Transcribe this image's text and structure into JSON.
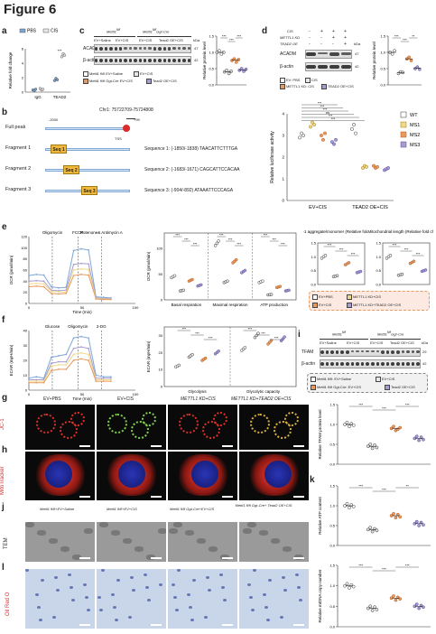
{
  "figure_title": "Figure 6",
  "colors": {
    "pbs": "#7fa7d6",
    "cis": "#e8e8e8",
    "wt": "#ffffff",
    "ms1": "#f0d98a",
    "ms2": "#e69a5f",
    "ms3": "#a89bd0",
    "tss": "#d92b2b",
    "seq": "#f3b93a",
    "jc1_bg": "#0a0a0a",
    "mito_red": "#d8322a",
    "mito_blue": "#2a35b5",
    "oil_bg": "#c9d6ea",
    "tem_bg": "#9a9a9a"
  },
  "panels": {
    "a": {
      "label": "a",
      "legend": [
        "PBS",
        "CIS"
      ],
      "ylabel": "Relative fold change",
      "sig": "***",
      "ticks_y": [
        "0",
        "2",
        "4",
        "6"
      ],
      "chart_data": {
        "type": "scatter",
        "categories": [
          "IgG",
          "TEAD2"
        ],
        "series": [
          {
            "name": "PBS",
            "values": [
              [
                0.3,
                0.2,
                0.4
              ],
              [
                1.6,
                1.9,
                1.7
              ]
            ]
          },
          {
            "name": "CIS",
            "values": [
              [
                0.5,
                0.3,
                0.4
              ],
              [
                4.9,
                5.3,
                5.1
              ]
            ]
          }
        ],
        "ylim": [
          0,
          6
        ]
      }
    },
    "c": {
      "label": "c",
      "header_left": "Mettl1",
      "header_left_sup": "fl/fl",
      "header_right": "Mettl1",
      "header_right_sup": "fl/fl",
      "header_right_suffix": "Ggt-Cre",
      "conditions": [
        "EV+Saline",
        "EV+CIS",
        "EV+CIS",
        "Tead2 OE+CIS"
      ],
      "rows": [
        "ACADM",
        "β-actin"
      ],
      "kda": [
        "kDa",
        "47",
        "42"
      ],
      "legend": [
        "Mettl1 fl/fl EV+Saline",
        "EV+CIS",
        "Mettl1 fl/fl Ggt-Cre EV+CIS",
        "Tead2 OE+CIS"
      ],
      "ylabel": "Relative protein level",
      "sig": [
        "***",
        "***",
        "***"
      ],
      "chart_data": {
        "type": "scatter",
        "categories": [
          "EV+Saline",
          "EV+CIS",
          "Cre EV+CIS",
          "Tead2 OE+CIS"
        ],
        "series": [
          {
            "values": [
              [
                1.0,
                1.05,
                0.95,
                1.0
              ],
              [
                0.4,
                0.45,
                0.35,
                0.42
              ],
              [
                0.75,
                0.8,
                0.7,
                0.78
              ],
              [
                0.45,
                0.5,
                0.42,
                0.48
              ]
            ]
          }
        ],
        "ylim": [
          0,
          1.5
        ]
      }
    },
    "d": {
      "label": "d",
      "rows_top": [
        "CIS",
        "METTL1 KD",
        "TEAD2 OE"
      ],
      "row_vals": [
        [
          "-",
          "+",
          "+",
          "+"
        ],
        [
          "-",
          "-",
          "+",
          "+"
        ],
        [
          "-",
          "-",
          "-",
          "+"
        ]
      ],
      "rows": [
        "ACADM",
        "β-actin"
      ],
      "kda": [
        "kDa",
        "47",
        "42"
      ],
      "legend": [
        "EV: PBS",
        "CIS",
        "METTL1 KD: CIS",
        "TEAD2 OE+CIS"
      ],
      "ylabel": "Relative protein level",
      "sig": [
        "***",
        "***",
        "**"
      ],
      "chart_data": {
        "type": "scatter",
        "categories": [
          "EV PBS",
          "EV CIS",
          "KD CIS",
          "KD+OE CIS"
        ],
        "series": [
          {
            "values": [
              [
                1.0,
                0.95,
                1.05
              ],
              [
                0.35,
                0.4,
                0.38
              ],
              [
                0.8,
                0.85,
                0.75
              ],
              [
                0.5,
                0.55,
                0.48
              ]
            ]
          }
        ],
        "ylim": [
          0,
          1.5
        ]
      }
    },
    "b": {
      "label": "b",
      "chr": "Chr1: 75722709-75724808",
      "start": "-2000",
      "end": "+99",
      "tss": "TSS",
      "rows": [
        {
          "name": "Full peak",
          "seq_label": "",
          "seq_text": ""
        },
        {
          "name": "Fragment 1",
          "seq_label": "Seq 1",
          "seq_text": "Sequence 1: (-1850/-1838) TAACATTCTTTGA"
        },
        {
          "name": "Fragment 2",
          "seq_label": "Seq 2",
          "seq_text": "Sequence 2: (-1683/-1671) CAGCATTCCACAA"
        },
        {
          "name": "Fragment 3",
          "seq_label": "Seq 3",
          "seq_text": "Sequence 3: (-904/-892) ATAAATTCCCAGA"
        }
      ]
    },
    "luc": {
      "ylabel": "Relative luciferase activity",
      "legend": [
        "WT",
        "MS1",
        "MS2",
        "MS3"
      ],
      "groups": [
        "EV+CIS",
        "TEAD2 OE+CIS"
      ],
      "sig": [
        "***",
        "***",
        "***",
        "ns",
        "***",
        "***"
      ],
      "ticks_y": [
        "0",
        "1",
        "2",
        "3",
        "4"
      ],
      "chart_data": {
        "type": "scatter",
        "categories": [
          "EV+CIS",
          "TEAD2 OE+CIS"
        ],
        "series": [
          {
            "name": "WT",
            "values": [
              [
                2.9,
                3.1,
                3.0
              ],
              [
                3.3,
                3.5,
                3.1
              ]
            ]
          },
          {
            "name": "MS1",
            "values": [
              [
                3.4,
                3.6,
                3.5
              ],
              [
                1.5,
                1.6,
                1.55
              ]
            ]
          },
          {
            "name": "MS2",
            "values": [
              [
                3.0,
                2.8,
                3.1
              ],
              [
                1.6,
                1.5,
                1.55
              ]
            ]
          },
          {
            "name": "MS3",
            "values": [
              [
                2.7,
                2.6,
                2.8
              ],
              [
                1.4,
                1.45,
                1.5
              ]
            ]
          }
        ],
        "ylim": [
          0,
          4
        ]
      }
    },
    "e": {
      "label": "e",
      "line": {
        "ylabel": "OCR (pmol/min)",
        "xlabel": "Time (min)",
        "markers": [
          "Oligomycin",
          "FCCP",
          "Rotenone& Antimycin A"
        ],
        "ticks_x": [
          "0",
          "50",
          "100"
        ],
        "ticks_y": [
          "0",
          "20",
          "40",
          "60",
          "80",
          "100",
          "120"
        ],
        "chart_data": {
          "type": "line",
          "x": [
            0,
            7,
            14,
            21,
            28,
            35,
            42,
            49,
            56,
            63,
            70,
            77
          ],
          "series": [
            {
              "values": [
                50,
                52,
                51,
                30,
                28,
                29,
                95,
                98,
                96,
                12,
                11,
                10
              ]
            },
            {
              "values": [
                40,
                41,
                40,
                24,
                23,
                24,
                70,
                72,
                71,
                10,
                9,
                9
              ]
            },
            {
              "values": [
                35,
                36,
                35,
                22,
                21,
                20,
                60,
                62,
                61,
                9,
                8,
                8
              ]
            },
            {
              "values": [
                30,
                31,
                30,
                18,
                17,
                18,
                50,
                52,
                51,
                8,
                7,
                7
              ]
            }
          ]
        }
      },
      "bar": {
        "ylabel": "OCR (pmol/min)",
        "categories": [
          "Basal respiration",
          "Maximal respiration",
          "ATP production"
        ],
        "ticks_y": [
          "0",
          "50",
          "100"
        ],
        "sig": [
          "***",
          "***",
          "***",
          "***",
          "***",
          "***",
          "***",
          "***",
          "***"
        ],
        "chart_data": {
          "type": "scatter",
          "categories": [
            "Basal respiration",
            "Maximal respiration",
            "ATP production"
          ],
          "series": [
            {
              "values": [
                [
                  45,
                  18,
                  38,
                  28
                ],
                [
                  110,
                  35,
                  75,
                  55
                ],
                [
                  35,
                  10,
                  25,
                  18
                ]
              ]
            }
          ],
          "ylim": [
            0,
            130
          ]
        }
      }
    },
    "jc1_mito": {
      "jc1_title": "JC-1 aggregate/monomer (Relative fold change)",
      "mito_title": "Mitochondrial length (Relative fold change)",
      "sig": [
        "***",
        "***",
        "***",
        "***",
        "***",
        "***"
      ],
      "ticks_y": [
        "0.0",
        "0.5",
        "1.0",
        "1.5"
      ],
      "chart_data": [
        {
          "type": "scatter",
          "categories": [
            "EV+PBS",
            "EV+CIS",
            "KD+CIS",
            "KD+OE+CIS"
          ],
          "values": [
            1.0,
            0.3,
            0.75,
            0.45
          ],
          "ylim": [
            0,
            1.5
          ]
        },
        {
          "type": "scatter",
          "categories": [
            "EV+PBS",
            "EV+CIS",
            "KD+CIS",
            "KD+OE+CIS"
          ],
          "values": [
            1.0,
            0.35,
            0.8,
            0.5
          ],
          "ylim": [
            0,
            1.5
          ]
        }
      ],
      "legend": [
        "EV+PBS",
        "METTL1 KD+CIS",
        "EV+CIS",
        "METTL1 KD+TEAD2 OE+CIS"
      ]
    },
    "f": {
      "label": "f",
      "line": {
        "ylabel": "ECAR (mpH/min)",
        "xlabel": "Time (min)",
        "markers": [
          "Glucose",
          "Oligomycin",
          "2-DG"
        ],
        "ticks_x": [
          "0",
          "50",
          "100"
        ],
        "ticks_y": [
          "0",
          "10",
          "20",
          "30",
          "40"
        ],
        "chart_data": {
          "type": "line",
          "x": [
            0,
            7,
            14,
            21,
            28,
            35,
            42,
            49,
            56,
            63,
            70,
            77
          ],
          "series": [
            {
              "values": [
                8,
                9,
                8,
                22,
                23,
                24,
                35,
                36,
                35,
                10,
                9,
                9
              ]
            },
            {
              "values": [
                7,
                7,
                7,
                18,
                19,
                19,
                28,
                29,
                28,
                8,
                8,
                8
              ]
            },
            {
              "values": [
                6,
                6,
                6,
                16,
                17,
                17,
                24,
                25,
                24,
                7,
                7,
                7
              ]
            },
            {
              "values": [
                5,
                5,
                5,
                13,
                14,
                14,
                20,
                21,
                20,
                6,
                6,
                6
              ]
            }
          ]
        }
      },
      "bar": {
        "ylabel": "ECAR (mpH/min)",
        "categories": [
          "Glycolysis",
          "Glycolytic capacity"
        ],
        "ticks_y": [
          "0",
          "10",
          "20",
          "30"
        ],
        "sig": [
          "***",
          "***",
          "***",
          "***",
          "***",
          "***"
        ],
        "chart_data": {
          "type": "scatter",
          "categories": [
            "Glycolysis",
            "Glycolytic capacity"
          ],
          "series": [
            {
              "values": [
                [
                  12,
                  18,
                  16,
                  20
                ],
                [
                  22,
                  30,
                  26,
                  28
                ]
              ]
            }
          ],
          "ylim": [
            0,
            35
          ]
        }
      }
    },
    "i": {
      "label": "i",
      "header_left": "Mettl1",
      "header_left_sup": "fl/fl",
      "header_right": "Mettl1",
      "header_right_sup": "fl/fl",
      "header_right_suffix": "Ggt-Cre",
      "conditions": [
        "EV+Saline",
        "EV+CIS",
        "EV+CIS",
        "Tead2 OE+CIS"
      ],
      "rows": [
        "TFAM",
        "β-actin"
      ],
      "kda": [
        "kDa",
        "29",
        "42"
      ],
      "legend": [
        "Mettl1 fl/fl: EV+Saline",
        "EV+CIS",
        "Mettl1 fl/fl Ggt-Cre: EV+CIS",
        "Tead2 OE+CIS"
      ]
    },
    "g": {
      "label": "g",
      "row_label": "JC-1",
      "cols": [
        "EV+PBS",
        "EV+CIS",
        "METTL1 KD+CIS",
        "METTL1 KD+TEAD2 OE+CIS"
      ]
    },
    "h": {
      "label": "h",
      "row_label": "MitoTracker"
    },
    "tfam_plot": {
      "ylabel": "Relative TFAM protein level",
      "sig": [
        "***",
        "***",
        "***"
      ],
      "chart_data": {
        "type": "scatter",
        "categories": [
          "Saline",
          "CIS",
          "Cre CIS",
          "OE CIS"
        ],
        "series": [
          {
            "values": [
              [
                1.0,
                1.05,
                0.95,
                1.02,
                0.98
              ],
              [
                0.45,
                0.5,
                0.4,
                0.48,
                0.42
              ],
              [
                0.9,
                0.95,
                0.85,
                0.88,
                0.92
              ],
              [
                0.65,
                0.7,
                0.6,
                0.68,
                0.62
              ]
            ]
          }
        ],
        "ylim": [
          0,
          1.5
        ]
      }
    },
    "j": {
      "label": "j",
      "row_label": "TEM",
      "cols": [
        "Mettl1 fl/fl+EV+Saline",
        "Mettl1 fl/fl+EV+CIS",
        "Mettl1 fl/fl Ggt-Cre+EV+CIS",
        "Mettl1 fl/fl Ggt-Cre+ Tead2 OE+CIS"
      ]
    },
    "k": {
      "label": "k",
      "ylabel": "Relative ATP content",
      "sig": [
        "***",
        "***",
        "**"
      ],
      "chart_data": {
        "type": "scatter",
        "categories": [
          "Saline",
          "CIS",
          "Cre CIS",
          "OE CIS"
        ],
        "series": [
          {
            "values": [
              [
                1.0,
                1.05,
                0.95,
                1.02,
                0.98
              ],
              [
                0.4,
                0.45,
                0.35,
                0.42,
                0.38
              ],
              [
                0.75,
                0.8,
                0.7,
                0.78,
                0.72
              ],
              [
                0.55,
                0.6,
                0.5,
                0.58,
                0.52
              ]
            ]
          }
        ],
        "ylim": [
          0,
          1.5
        ]
      }
    },
    "l": {
      "label": "l",
      "row_label": "Oil Red O"
    },
    "mtdna": {
      "ylabel": "Relative mtDNA copy number",
      "sig": [
        "***",
        "***",
        "***"
      ],
      "chart_data": {
        "type": "scatter",
        "categories": [
          "Saline",
          "CIS",
          "Cre CIS",
          "OE CIS"
        ],
        "series": [
          {
            "values": [
              [
                1.0,
                1.05,
                0.95,
                1.02,
                0.98
              ],
              [
                0.45,
                0.5,
                0.4,
                0.48,
                0.42
              ],
              [
                0.7,
                0.75,
                0.65,
                0.72,
                0.68
              ],
              [
                0.5,
                0.55,
                0.45,
                0.52,
                0.48
              ]
            ]
          }
        ],
        "ylim": [
          0,
          1.5
        ]
      }
    }
  }
}
